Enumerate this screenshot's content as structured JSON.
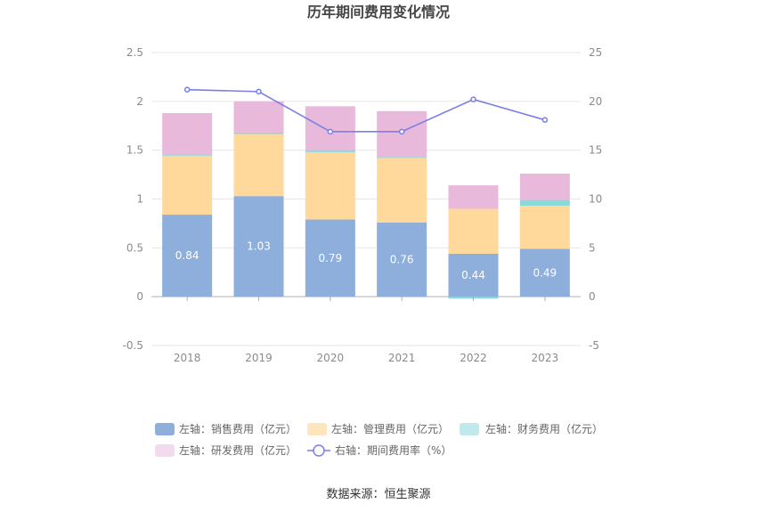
{
  "chart_data": {
    "type": "bar",
    "title": "历年期间费用变化情况",
    "categories": [
      "2018",
      "2019",
      "2020",
      "2021",
      "2022",
      "2023"
    ],
    "left_axis": {
      "ylim": [
        -0.5,
        2.5
      ],
      "ticks": [
        "2.5",
        "2",
        "1.5",
        "1",
        "0.5",
        "0",
        "-0.5"
      ],
      "tick_values": [
        2.5,
        2,
        1.5,
        1,
        0.5,
        0,
        -0.5
      ]
    },
    "right_axis": {
      "ylim": [
        -5,
        25
      ],
      "ticks": [
        "25",
        "20",
        "15",
        "10",
        "5",
        "0",
        "-5"
      ],
      "tick_values": [
        25,
        20,
        15,
        10,
        5,
        0,
        -5
      ]
    },
    "series": [
      {
        "name": "左轴：销售费用（亿元）",
        "kind": "bar",
        "color": "#8eaedb",
        "values": [
          0.84,
          1.03,
          0.79,
          0.76,
          0.44,
          0.49
        ],
        "labels": [
          "0.84",
          "1.03",
          "0.79",
          "0.76",
          "0.44",
          "0.49"
        ]
      },
      {
        "name": "左轴：管理费用（亿元）",
        "kind": "bar",
        "color": "#ffd99b",
        "values": [
          0.6,
          0.65,
          0.69,
          0.66,
          0.46,
          0.44
        ]
      },
      {
        "name": "左轴：财务费用（亿元）",
        "kind": "bar",
        "color": "#8ad9d9",
        "values": [
          0.01,
          0.0,
          0.02,
          0.01,
          -0.02,
          0.06
        ]
      },
      {
        "name": "左轴：研发费用（亿元）",
        "kind": "bar",
        "color": "#e8b9da",
        "values": [
          0.43,
          0.32,
          0.45,
          0.47,
          0.24,
          0.27
        ]
      },
      {
        "name": "右轴：期间费用率（%）",
        "kind": "line",
        "color": "#7a7fe6",
        "values": [
          21.2,
          21.0,
          16.9,
          16.9,
          20.2,
          18.1
        ]
      }
    ],
    "legend_position": "bottom",
    "source": "数据来源：恒生聚源"
  },
  "legend_colors": {
    "sales": "#8eaedb",
    "management": "#ffe5bd",
    "finance": "#bfe9ea",
    "rnd": "#f3dbee",
    "rate": "#7a7fe6"
  }
}
